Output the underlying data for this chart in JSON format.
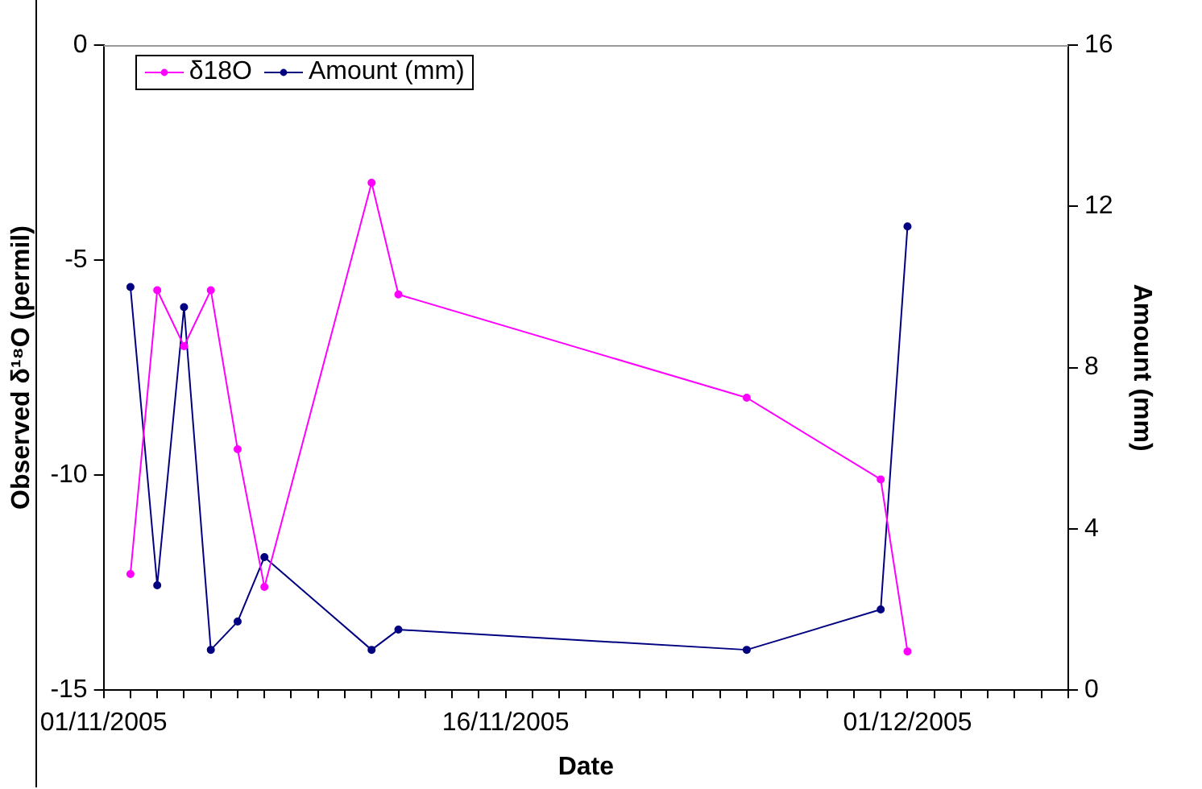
{
  "chart_data": {
    "type": "line",
    "xlabel": "Date",
    "ylabel": "Observed δ¹⁸O (permil)",
    "y2label": "Amount (mm)",
    "x": [
      "2005-11-02",
      "2005-11-03",
      "2005-11-04",
      "2005-11-05",
      "2005-11-06",
      "2005-11-07",
      "2005-11-11",
      "2005-11-12",
      "2005-11-25",
      "2005-11-30",
      "2005-12-01"
    ],
    "series": [
      {
        "name": "δ18O",
        "color": "#ff00ff",
        "values": [
          -12.3,
          -5.7,
          -7.0,
          -5.7,
          -9.4,
          -12.6,
          -3.2,
          -5.8,
          -8.2,
          -10.1,
          -14.1
        ]
      },
      {
        "name": "Amount (mm)",
        "color": "#000080",
        "axis": "y2",
        "values": [
          10.0,
          2.6,
          9.5,
          1.0,
          1.7,
          3.3,
          1.0,
          1.5,
          1.0,
          2.0,
          11.5
        ]
      }
    ],
    "xlim": [
      "2005-11-01",
      "2005-12-07"
    ],
    "xticks": [
      {
        "value": "2005-11-01",
        "label": "01/11/2005"
      },
      {
        "value": "2005-11-16",
        "label": "16/11/2005"
      },
      {
        "value": "2005-12-01",
        "label": "01/12/2005"
      }
    ],
    "ylim": [
      -15,
      0
    ],
    "yticks": [
      -15,
      -10,
      -5,
      0
    ],
    "y2lim": [
      0,
      16
    ],
    "y2ticks": [
      0,
      4,
      8,
      12,
      16
    ],
    "grid": false,
    "legend": "top left",
    "marker": "circle",
    "line_style": "solid"
  }
}
